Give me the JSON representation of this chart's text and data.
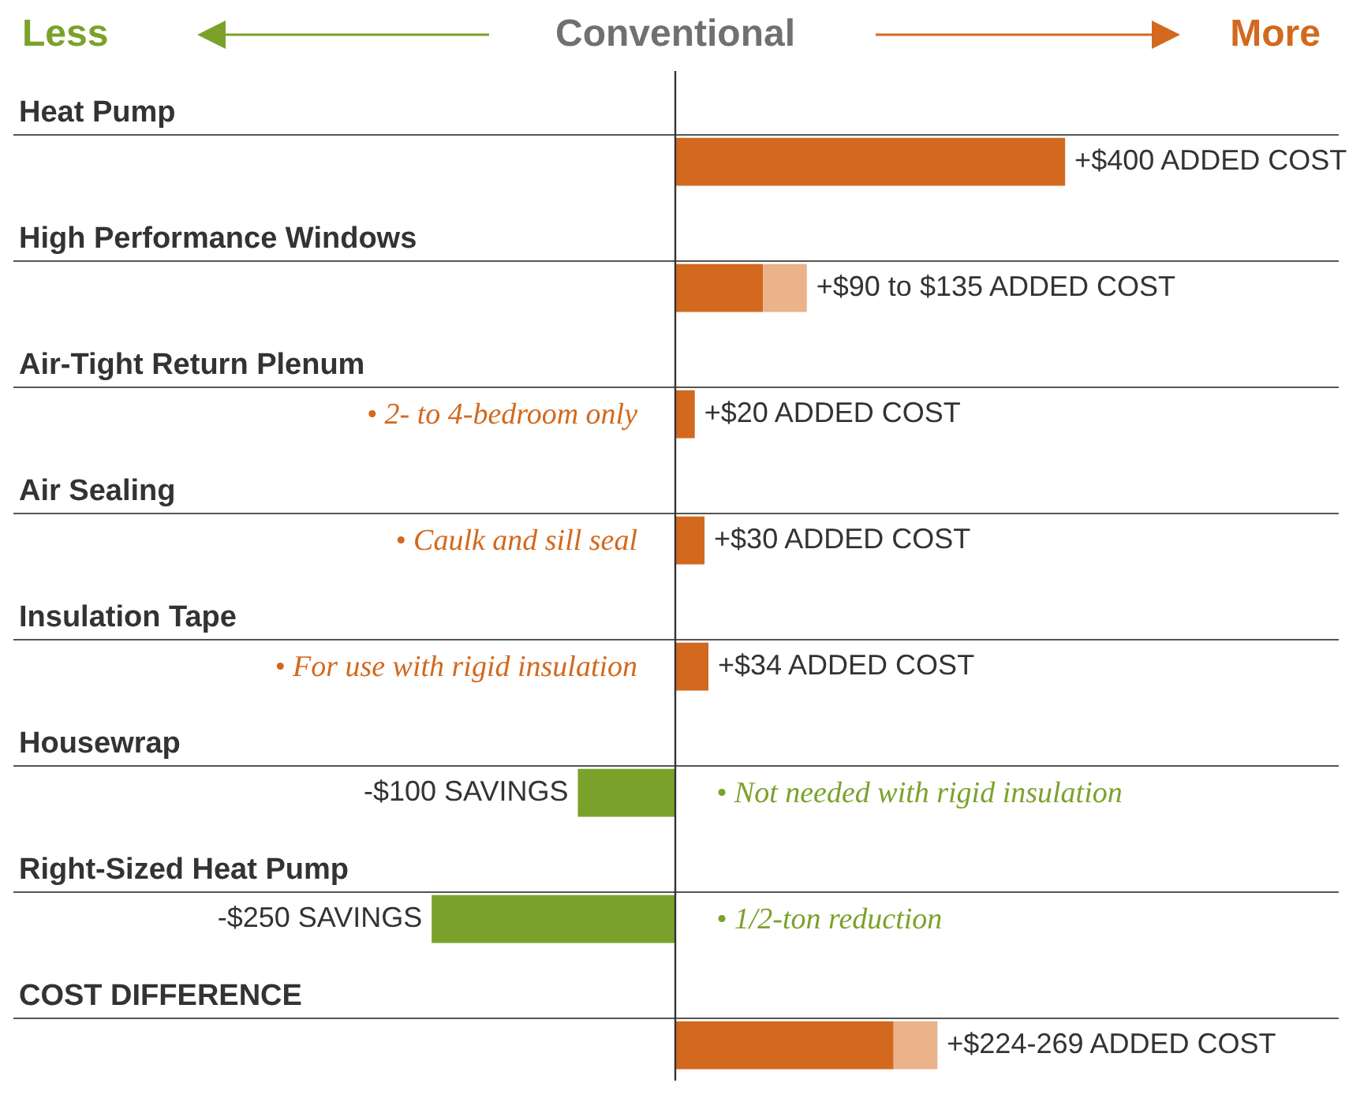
{
  "chart_data": {
    "type": "bar",
    "orientation": "horizontal",
    "stacked": true,
    "xlabel": "Conventional",
    "categories": [
      "Heat Pump",
      "High Performance Windows",
      "Air-Tight Return Plenum",
      "Air Sealing",
      "Insulation Tape",
      "Housewrap",
      "Right-Sized Heat Pump",
      "COST DIFFERENCE"
    ],
    "series": [
      {
        "colors": [
          "#d2691e",
          "#d2691e",
          "#d2691e",
          "#d2691e",
          "#d2691e",
          "#7aa22b",
          "#7aa22b",
          "#d2691e"
        ],
        "values": [
          400,
          90,
          20,
          30,
          34,
          -100,
          -250,
          224
        ],
        "value_labels": [
          "+$400 ADDED COST",
          "+$90 to $135 ADDED COST",
          "+$20 ADDED COST",
          "+$30 ADDED COST",
          "+$34 ADDED COST",
          "-$100 SAVINGS",
          "-$250 SAVINGS",
          "+$224-269 ADDED COST"
        ]
      },
      {
        "color": "#eab38a",
        "values": [
          null,
          45,
          null,
          null,
          null,
          null,
          null,
          45
        ]
      }
    ],
    "annotations": [
      "Less",
      "More",
      "• 2- to 4-bedroom only",
      "• Caulk and sill seal",
      "• For use with rigid insulation",
      "• Not needed with rigid insulation",
      "• 1/2-ton reduction"
    ],
    "ref_lines": [
      {
        "axis": "x",
        "value": 0,
        "color": "#333333"
      }
    ],
    "grid": "y"
  }
}
